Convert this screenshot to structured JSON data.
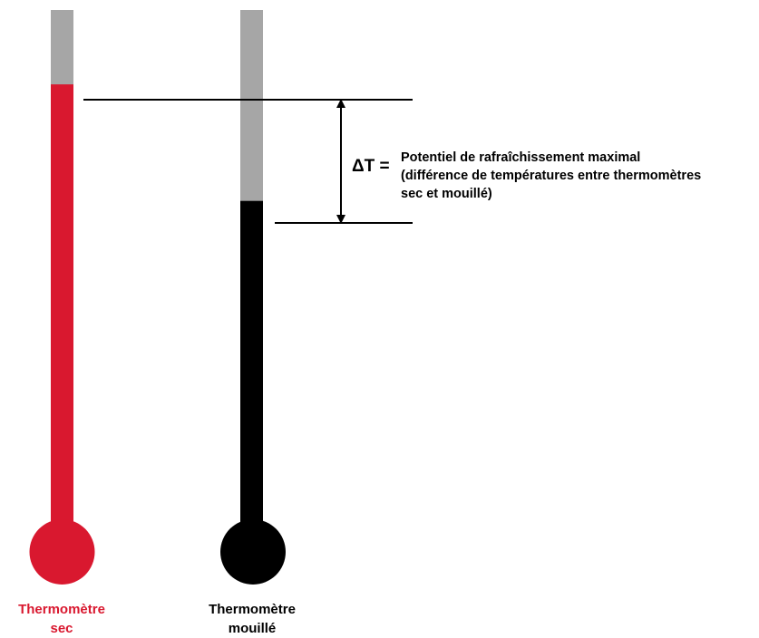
{
  "colors": {
    "dry": "#d9182f",
    "wet": "#000000",
    "tube": "#a6a6a6",
    "line": "#000000"
  },
  "thermometers": [
    {
      "id": "dry",
      "label_line1": "Thermomètre",
      "label_line2": "sec",
      "fill_fraction": 0.857
    },
    {
      "id": "wet",
      "label_line1": "Thermomètre",
      "label_line2": "mouillé",
      "fill_fraction": 0.633
    }
  ],
  "delta": {
    "symbol": "ΔT =",
    "line1": "Potentiel de rafraîchissement maximal",
    "line2": "(différence de températures entre thermomètres",
    "line3": "sec et mouillé)"
  }
}
